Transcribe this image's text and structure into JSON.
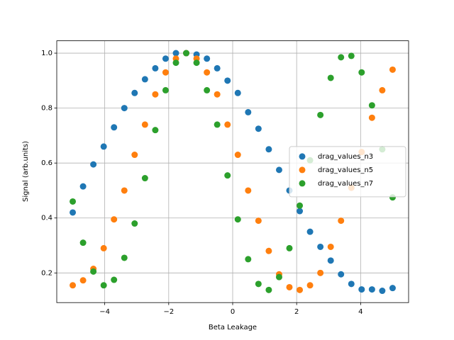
{
  "chart_data": {
    "type": "scatter",
    "x_label": "Beta Leakage",
    "y_label": "Signal (arb.units)",
    "x": [
      -5.0,
      -4.677,
      -4.355,
      -4.032,
      -3.71,
      -3.387,
      -3.065,
      -2.742,
      -2.419,
      -2.097,
      -1.774,
      -1.452,
      -1.129,
      -0.806,
      -0.484,
      -0.161,
      0.161,
      0.484,
      0.806,
      1.129,
      1.452,
      1.774,
      2.097,
      2.419,
      2.742,
      3.065,
      3.387,
      3.71,
      4.032,
      4.355,
      4.677,
      5.0
    ],
    "series": [
      {
        "name": "drag_values_n3",
        "color": "#1f77b4",
        "values": [
          0.42,
          0.515,
          0.595,
          0.66,
          0.73,
          0.8,
          0.855,
          0.905,
          0.945,
          0.98,
          1.0,
          1.0,
          0.995,
          0.98,
          0.945,
          0.9,
          0.855,
          0.785,
          0.725,
          0.65,
          0.575,
          0.5,
          0.425,
          0.35,
          0.295,
          0.245,
          0.195,
          0.16,
          0.14,
          0.14,
          0.135,
          0.145
        ]
      },
      {
        "name": "drag_values_n5",
        "color": "#ff7f0e",
        "values": [
          0.155,
          0.173,
          0.215,
          0.29,
          0.395,
          0.5,
          0.63,
          0.74,
          0.85,
          0.93,
          0.98,
          1.0,
          0.98,
          0.93,
          0.85,
          0.74,
          0.63,
          0.5,
          0.39,
          0.28,
          0.195,
          0.148,
          0.138,
          0.155,
          0.2,
          0.295,
          0.39,
          0.51,
          0.64,
          0.765,
          0.865,
          0.94
        ]
      },
      {
        "name": "drag_values_n7",
        "color": "#2ca02c",
        "values": [
          0.46,
          0.31,
          0.205,
          0.155,
          0.175,
          0.255,
          0.38,
          0.545,
          0.72,
          0.865,
          0.965,
          1.0,
          0.965,
          0.865,
          0.74,
          0.555,
          0.395,
          0.25,
          0.16,
          0.138,
          0.185,
          0.29,
          0.445,
          0.61,
          0.775,
          0.91,
          0.985,
          0.99,
          0.93,
          0.81,
          0.65,
          0.475
        ]
      }
    ],
    "xlim": [
      -5.5,
      5.5
    ],
    "ylim": [
      0.092,
      1.045
    ],
    "xticks": [
      {
        "value": -4,
        "label": "−4"
      },
      {
        "value": -2,
        "label": "−2"
      },
      0,
      2,
      4
    ],
    "yticks": [
      0.2,
      0.4,
      0.6,
      0.8,
      {
        "value": 1.0,
        "label": "1.0"
      }
    ],
    "grid": true,
    "legend": "center right"
  }
}
